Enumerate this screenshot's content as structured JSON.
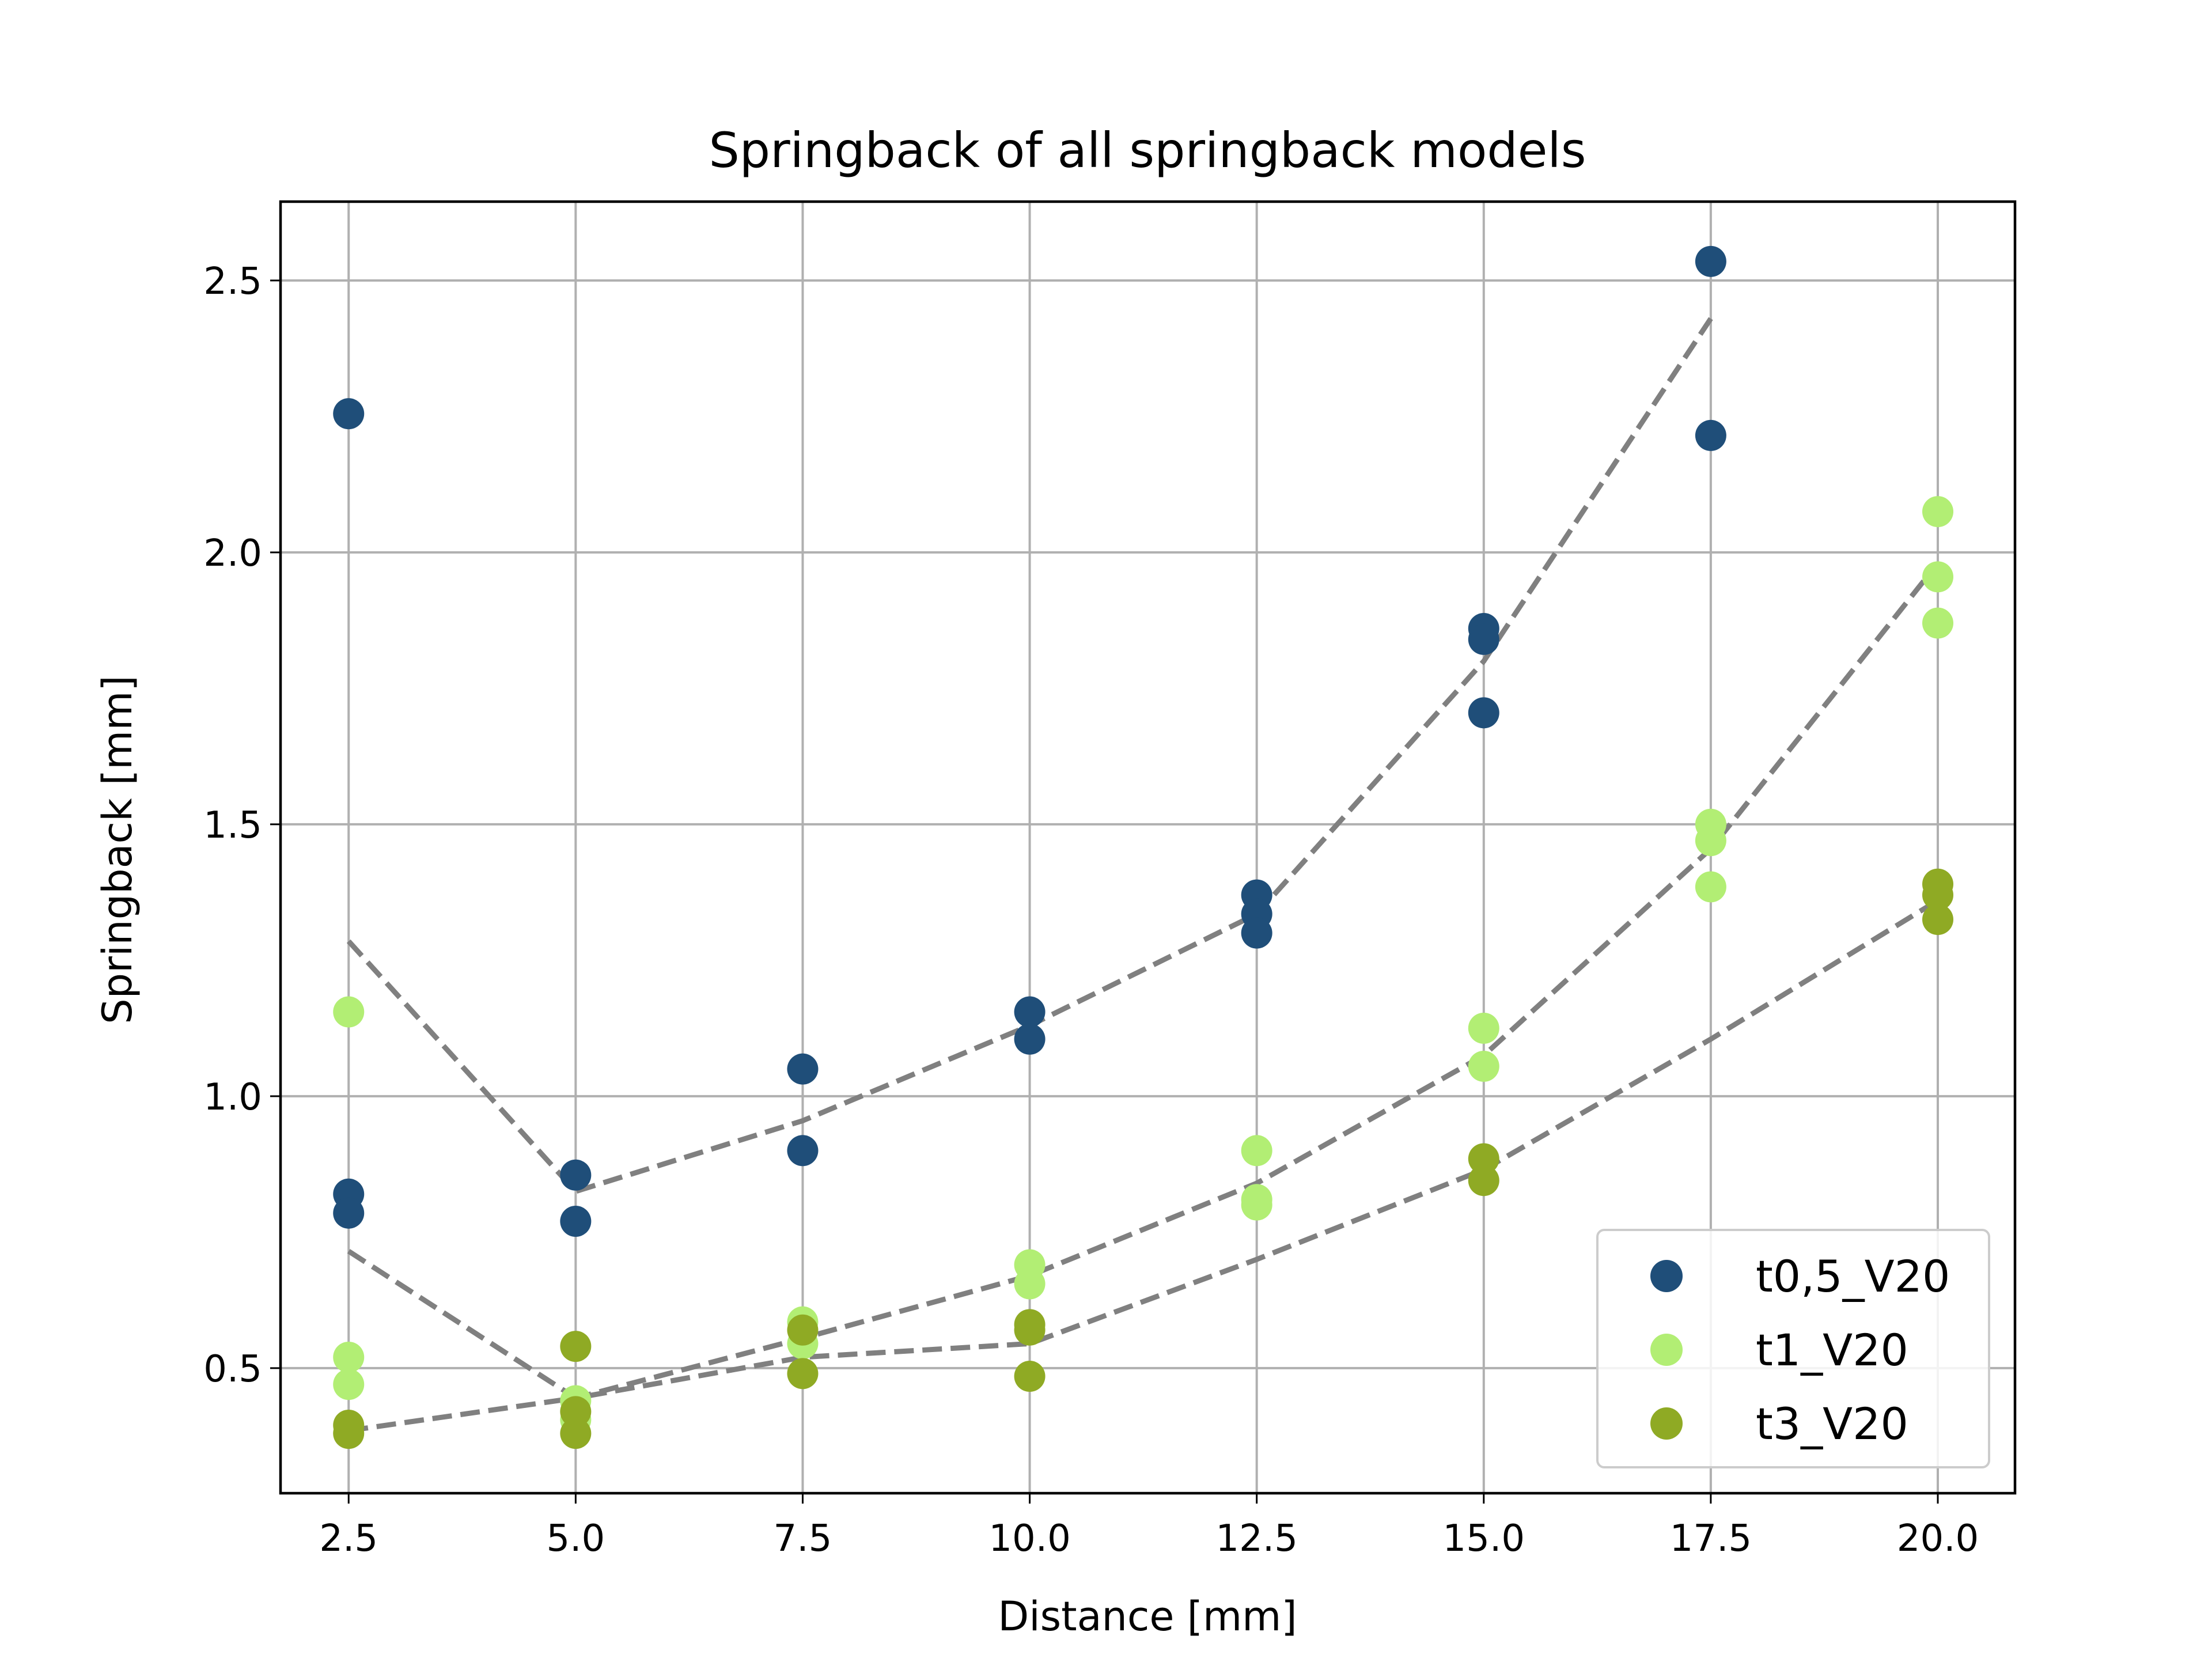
{
  "chart_data": {
    "type": "scatter",
    "title": "Springback of all springback models",
    "xlabel": "Distance [mm]",
    "ylabel": "Springback [mm]",
    "xlim": [
      1.75,
      20.85
    ],
    "ylim": [
      0.27,
      2.645
    ],
    "xticks": [
      2.5,
      5.0,
      7.5,
      10.0,
      12.5,
      15.0,
      17.5,
      20.0
    ],
    "xtick_labels": [
      "2.5",
      "5.0",
      "7.5",
      "10.0",
      "12.5",
      "15.0",
      "17.5",
      "20.0"
    ],
    "yticks": [
      0.5,
      1.0,
      1.5,
      2.0,
      2.5
    ],
    "ytick_labels": [
      "0.5",
      "1.0",
      "1.5",
      "2.0",
      "2.5"
    ],
    "grid": true,
    "legend_position": "lower-right",
    "series": [
      {
        "name": "t0,5_V20",
        "color": "#1f4e79",
        "points": [
          [
            2.5,
            2.255
          ],
          [
            2.5,
            0.82
          ],
          [
            2.5,
            0.785
          ],
          [
            5.0,
            0.855
          ],
          [
            5.0,
            0.77
          ],
          [
            7.5,
            1.05
          ],
          [
            7.5,
            0.9
          ],
          [
            10.0,
            1.155
          ],
          [
            10.0,
            1.105
          ],
          [
            12.5,
            1.37
          ],
          [
            12.5,
            1.335
          ],
          [
            12.5,
            1.3
          ],
          [
            15.0,
            1.86
          ],
          [
            15.0,
            1.84
          ],
          [
            15.0,
            1.705
          ],
          [
            17.5,
            2.535
          ],
          [
            17.5,
            2.215
          ]
        ]
      },
      {
        "name": "t1_V20",
        "color": "#b2ee74",
        "points": [
          [
            2.5,
            1.155
          ],
          [
            2.5,
            0.52
          ],
          [
            2.5,
            0.47
          ],
          [
            5.0,
            0.44
          ],
          [
            5.0,
            0.405
          ],
          [
            7.5,
            0.585
          ],
          [
            7.5,
            0.545
          ],
          [
            10.0,
            0.69
          ],
          [
            10.0,
            0.655
          ],
          [
            12.5,
            0.9
          ],
          [
            12.5,
            0.81
          ],
          [
            12.5,
            0.8
          ],
          [
            15.0,
            1.125
          ],
          [
            15.0,
            1.055
          ],
          [
            17.5,
            1.5
          ],
          [
            17.5,
            1.47
          ],
          [
            17.5,
            1.385
          ],
          [
            20.0,
            2.075
          ],
          [
            20.0,
            1.955
          ],
          [
            20.0,
            1.87
          ]
        ]
      },
      {
        "name": "t3_V20",
        "color": "#8faa24",
        "points": [
          [
            2.5,
            0.395
          ],
          [
            2.5,
            0.38
          ],
          [
            5.0,
            0.54
          ],
          [
            5.0,
            0.42
          ],
          [
            5.0,
            0.38
          ],
          [
            7.5,
            0.57
          ],
          [
            7.5,
            0.49
          ],
          [
            10.0,
            0.58
          ],
          [
            10.0,
            0.57
          ],
          [
            10.0,
            0.485
          ],
          [
            15.0,
            0.885
          ],
          [
            15.0,
            0.845
          ],
          [
            20.0,
            1.39
          ],
          [
            20.0,
            1.37
          ],
          [
            20.0,
            1.325
          ]
        ]
      }
    ],
    "trend_lines": [
      {
        "color": "#808080",
        "style": "dashed",
        "points": [
          [
            2.5,
            1.285
          ],
          [
            5.0,
            0.825
          ],
          [
            7.5,
            0.955
          ],
          [
            10.0,
            1.13
          ],
          [
            12.5,
            1.335
          ],
          [
            15.0,
            1.8
          ],
          [
            17.5,
            2.43
          ]
        ]
      },
      {
        "color": "#808080",
        "style": "dashed",
        "points": [
          [
            2.5,
            0.715
          ],
          [
            5.0,
            0.445
          ],
          [
            7.5,
            0.52
          ],
          [
            10.0,
            0.545
          ],
          [
            12.5,
            0.7
          ],
          [
            15.0,
            0.865
          ],
          [
            17.5,
            1.105
          ],
          [
            20.0,
            1.36
          ]
        ]
      },
      {
        "color": "#808080",
        "style": "dashed",
        "points": [
          [
            2.5,
            0.385
          ],
          [
            5.0,
            0.445
          ],
          [
            7.5,
            0.555
          ],
          [
            10.0,
            0.67
          ],
          [
            12.5,
            0.84
          ],
          [
            15.0,
            1.075
          ],
          [
            17.5,
            1.455
          ],
          [
            20.0,
            1.98
          ]
        ]
      }
    ]
  }
}
